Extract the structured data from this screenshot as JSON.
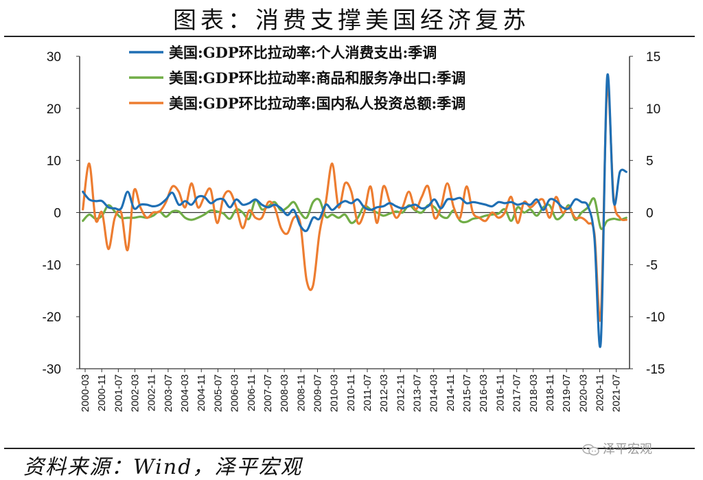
{
  "header": {
    "title": "图表：消费支撑美国经济复苏"
  },
  "footer": {
    "source": "资料来源：Wind，泽平宏观",
    "watermark": "泽平宏观"
  },
  "colors": {
    "consumption": "#1f6fb4",
    "net_exports": "#70ad47",
    "investment": "#ed7d31",
    "axis": "#333333"
  },
  "chart_data": {
    "type": "line",
    "title": "图表：消费支撑美国经济复苏",
    "xlabel": "",
    "ylabel": "",
    "ylim": [
      -30,
      30
    ],
    "ylim_right": [
      -15,
      15
    ],
    "yticks": [
      "30",
      "20",
      "10",
      "0",
      "-10",
      "-20",
      "-30"
    ],
    "yticks_right": [
      "15",
      "10",
      "5",
      "0",
      "-5",
      "-10",
      "-15"
    ],
    "grid": false,
    "legend_position": "top",
    "x_tick_labels": [
      "2000-03",
      "2000-11",
      "2001-07",
      "2002-03",
      "2002-11",
      "2003-07",
      "2004-03",
      "2004-11",
      "2005-07",
      "2006-03",
      "2006-11",
      "2007-07",
      "2008-03",
      "2008-11",
      "2009-07",
      "2010-03",
      "2010-11",
      "2011-07",
      "2012-03",
      "2012-11",
      "2013-07",
      "2014-03",
      "2014-11",
      "2015-07",
      "2016-03",
      "2016-11",
      "2017-07",
      "2018-03",
      "2018-11",
      "2019-07",
      "2020-03",
      "2020-11",
      "2021-07"
    ],
    "x": [
      "2000-03",
      "2000-06",
      "2000-09",
      "2000-12",
      "2001-03",
      "2001-06",
      "2001-09",
      "2001-12",
      "2002-03",
      "2002-06",
      "2002-09",
      "2002-12",
      "2003-03",
      "2003-06",
      "2003-09",
      "2003-12",
      "2004-03",
      "2004-06",
      "2004-09",
      "2004-12",
      "2005-03",
      "2005-06",
      "2005-09",
      "2005-12",
      "2006-03",
      "2006-06",
      "2006-09",
      "2006-12",
      "2007-03",
      "2007-06",
      "2007-09",
      "2007-12",
      "2008-03",
      "2008-06",
      "2008-09",
      "2008-12",
      "2009-03",
      "2009-06",
      "2009-09",
      "2009-12",
      "2010-03",
      "2010-06",
      "2010-09",
      "2010-12",
      "2011-03",
      "2011-06",
      "2011-09",
      "2011-12",
      "2012-03",
      "2012-06",
      "2012-09",
      "2012-12",
      "2013-03",
      "2013-06",
      "2013-09",
      "2013-12",
      "2014-03",
      "2014-06",
      "2014-09",
      "2014-12",
      "2015-03",
      "2015-06",
      "2015-09",
      "2015-12",
      "2016-03",
      "2016-06",
      "2016-09",
      "2016-12",
      "2017-03",
      "2017-06",
      "2017-09",
      "2017-12",
      "2018-03",
      "2018-06",
      "2018-09",
      "2018-12",
      "2019-03",
      "2019-06",
      "2019-09",
      "2019-12",
      "2020-03",
      "2020-06",
      "2020-09",
      "2020-12",
      "2021-03",
      "2021-06"
    ],
    "series": [
      {
        "name": "美国:GDP环比拉动率:个人消费支出:季调",
        "axis": "left",
        "values": [
          4.0,
          2.5,
          2.2,
          2.2,
          1.0,
          0.8,
          0.8,
          4.0,
          0.8,
          1.5,
          1.5,
          1.2,
          1.5,
          2.5,
          3.8,
          1.5,
          2.2,
          1.5,
          3.0,
          3.0,
          1.8,
          2.5,
          2.5,
          1.0,
          2.5,
          1.5,
          1.8,
          2.5,
          1.5,
          1.0,
          1.5,
          0.8,
          -0.5,
          0.5,
          -2.5,
          -3.5,
          -1.0,
          -1.2,
          1.5,
          0.5,
          1.5,
          2.2,
          1.8,
          2.5,
          1.0,
          0.5,
          1.0,
          1.2,
          1.8,
          1.2,
          0.8,
          1.2,
          1.5,
          0.8,
          1.2,
          2.5,
          0.8,
          2.5,
          2.5,
          2.8,
          1.8,
          2.0,
          1.8,
          1.5,
          1.2,
          2.0,
          1.8,
          2.0,
          1.5,
          1.8,
          1.5,
          2.5,
          0.5,
          2.5,
          2.2,
          1.0,
          0.8,
          2.5,
          2.0,
          1.2,
          -4.8,
          -25.0,
          26.0,
          2.2,
          7.8,
          7.8
        ]
      },
      {
        "name": "美国:GDP环比拉动率:商品和服务净出口:季调",
        "axis": "right",
        "values": [
          -0.8,
          -0.2,
          -0.6,
          -0.3,
          0.7,
          0.1,
          -0.5,
          -0.5,
          -0.5,
          -0.4,
          -0.5,
          -0.3,
          0.1,
          -0.4,
          0.1,
          0.1,
          -0.5,
          -0.7,
          -0.5,
          -0.2,
          0.2,
          0.1,
          -0.1,
          -0.6,
          0.3,
          0.0,
          -0.6,
          1.2,
          0.3,
          0.6,
          1.0,
          0.2,
          0.5,
          1.0,
          0.0,
          -0.5,
          1.0,
          1.2,
          -0.4,
          -0.2,
          -0.5,
          -0.2,
          -1.0,
          -0.5,
          0.6,
          0.3,
          0.0,
          -0.3,
          -0.1,
          0.1,
          0.0,
          0.7,
          0.2,
          0.0,
          0.7,
          0.5,
          -0.3,
          -0.5,
          0.2,
          -0.8,
          -0.9,
          -0.6,
          -0.5,
          -0.3,
          -0.2,
          -0.1,
          0.3,
          -0.8,
          0.5,
          0.0,
          0.3,
          -0.3,
          0.5,
          0.7,
          -0.6,
          -0.3,
          0.7,
          -0.7,
          0.0,
          0.5,
          1.3,
          -1.5,
          -0.8,
          -0.6,
          -0.7,
          -0.5
        ]
      },
      {
        "name": "美国:GDP环比拉动率:国内私人投资总额:季调",
        "axis": "right",
        "values": [
          0.3,
          4.7,
          -0.7,
          0.0,
          -3.5,
          -0.5,
          0.0,
          -3.6,
          2.1,
          0.5,
          -0.5,
          0.0,
          0.1,
          1.0,
          2.5,
          2.0,
          0.5,
          2.8,
          0.5,
          1.5,
          2.2,
          -1.0,
          1.5,
          2.0,
          0.5,
          -1.5,
          0.2,
          -0.5,
          -0.5,
          1.0,
          0.5,
          -1.5,
          -2.0,
          -0.5,
          -1.0,
          -6.5,
          -7.0,
          -2.0,
          1.0,
          4.7,
          0.5,
          2.8,
          2.0,
          -1.0,
          0.0,
          2.5,
          -1.0,
          2.5,
          1.0,
          -0.5,
          0.5,
          2.0,
          0.3,
          1.5,
          2.5,
          -0.5,
          0.5,
          2.8,
          0.5,
          -0.5,
          2.5,
          0.0,
          -0.5,
          -0.8,
          0.0,
          -0.5,
          0.0,
          1.5,
          -1.0,
          1.0,
          0.5,
          1.0,
          1.2,
          -0.5,
          1.5,
          0.0,
          0.5,
          -0.5,
          -0.5,
          -1.0,
          -2.0,
          -10.0,
          12.0,
          1.5,
          -0.5,
          -0.7
        ]
      }
    ]
  }
}
